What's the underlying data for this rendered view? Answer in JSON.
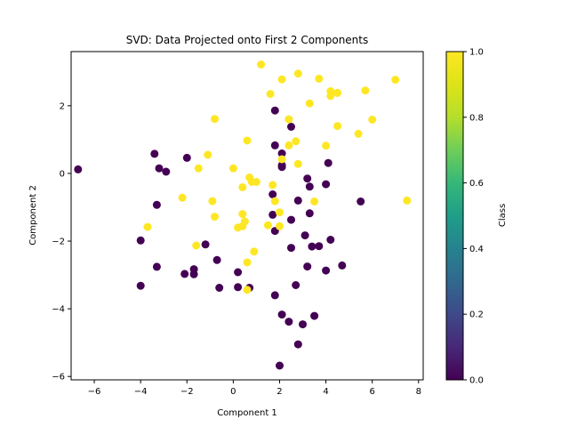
{
  "chart_data": {
    "type": "scatter",
    "title": "SVD: Data Projected onto First 2 Components",
    "xlabel": "Component 1",
    "ylabel": "Component 2",
    "xlim": [
      -7.0,
      8.2
    ],
    "ylim": [
      -6.1,
      3.6
    ],
    "xticks": [
      -6,
      -4,
      -2,
      0,
      2,
      4,
      6,
      8
    ],
    "yticks": [
      -6,
      -4,
      -2,
      0,
      2
    ],
    "grid": false,
    "colormap": "viridis",
    "colorbar": {
      "label": "Class",
      "range": [
        0.0,
        1.0
      ],
      "ticks": [
        0.0,
        0.2,
        0.4,
        0.6,
        0.8,
        1.0
      ],
      "tick_labels": [
        "0.0",
        "0.2",
        "0.4",
        "0.6",
        "0.8",
        "1.0"
      ]
    },
    "series": [
      {
        "class": 0,
        "color": "#440154",
        "points": [
          [
            -6.7,
            0.12
          ],
          [
            -3.4,
            0.58
          ],
          [
            -3.2,
            0.15
          ],
          [
            -2.9,
            0.05
          ],
          [
            -2.0,
            0.46
          ],
          [
            -3.3,
            -0.93
          ],
          [
            -4.0,
            -1.98
          ],
          [
            -3.3,
            -2.76
          ],
          [
            -4.0,
            -3.32
          ],
          [
            -2.1,
            -2.97
          ],
          [
            -1.7,
            -2.83
          ],
          [
            -1.7,
            -2.98
          ],
          [
            -1.2,
            -2.1
          ],
          [
            -0.7,
            -2.56
          ],
          [
            -0.6,
            -3.38
          ],
          [
            0.2,
            -2.92
          ],
          [
            0.2,
            -3.36
          ],
          [
            0.7,
            -3.38
          ],
          [
            1.7,
            -0.62
          ],
          [
            1.7,
            -1.22
          ],
          [
            1.8,
            -1.7
          ],
          [
            1.8,
            0.83
          ],
          [
            1.8,
            1.86
          ],
          [
            2.1,
            0.59
          ],
          [
            2.1,
            0.24
          ],
          [
            2.1,
            0.19
          ],
          [
            2.5,
            1.38
          ],
          [
            2.5,
            -1.37
          ],
          [
            2.5,
            -2.2
          ],
          [
            2.8,
            -0.8
          ],
          [
            3.1,
            -1.83
          ],
          [
            3.2,
            -0.15
          ],
          [
            3.3,
            -0.39
          ],
          [
            3.3,
            -1.18
          ],
          [
            3.4,
            -2.16
          ],
          [
            3.7,
            -2.15
          ],
          [
            3.2,
            -2.75
          ],
          [
            4.0,
            -0.32
          ],
          [
            4.1,
            0.31
          ],
          [
            4.2,
            -1.96
          ],
          [
            4.0,
            -2.87
          ],
          [
            4.7,
            -2.72
          ],
          [
            5.5,
            -0.83
          ],
          [
            1.8,
            -3.6
          ],
          [
            2.7,
            -3.3
          ],
          [
            2.1,
            -4.17
          ],
          [
            2.4,
            -4.38
          ],
          [
            3.0,
            -4.46
          ],
          [
            3.5,
            -4.21
          ],
          [
            2.8,
            -5.05
          ],
          [
            2.0,
            -5.68
          ]
        ]
      },
      {
        "class": 1,
        "color": "#fde725",
        "points": [
          [
            -3.7,
            -1.58
          ],
          [
            -2.2,
            -0.72
          ],
          [
            -1.6,
            -2.13
          ],
          [
            -1.5,
            0.15
          ],
          [
            -1.1,
            0.55
          ],
          [
            -0.9,
            -0.82
          ],
          [
            -0.8,
            -1.28
          ],
          [
            -0.8,
            1.61
          ],
          [
            0.0,
            0.15
          ],
          [
            0.2,
            -1.6
          ],
          [
            0.4,
            -1.2
          ],
          [
            0.4,
            -1.56
          ],
          [
            0.5,
            -1.42
          ],
          [
            0.4,
            -0.41
          ],
          [
            0.6,
            0.97
          ],
          [
            0.7,
            -0.12
          ],
          [
            0.8,
            -0.25
          ],
          [
            0.9,
            -2.31
          ],
          [
            1.0,
            -0.25
          ],
          [
            0.6,
            -2.63
          ],
          [
            0.6,
            -3.44
          ],
          [
            1.2,
            3.22
          ],
          [
            1.5,
            -1.53
          ],
          [
            1.6,
            2.35
          ],
          [
            1.7,
            -0.34
          ],
          [
            1.8,
            -0.82
          ],
          [
            2.0,
            -1.56
          ],
          [
            2.0,
            -1.15
          ],
          [
            2.1,
            0.42
          ],
          [
            2.1,
            2.78
          ],
          [
            2.4,
            1.6
          ],
          [
            2.4,
            0.83
          ],
          [
            2.7,
            0.95
          ],
          [
            2.8,
            0.28
          ],
          [
            2.8,
            2.95
          ],
          [
            3.3,
            2.07
          ],
          [
            3.5,
            -0.83
          ],
          [
            3.7,
            2.8
          ],
          [
            4.0,
            0.82
          ],
          [
            4.2,
            2.43
          ],
          [
            4.2,
            2.29
          ],
          [
            4.5,
            2.38
          ],
          [
            4.5,
            1.4
          ],
          [
            5.4,
            1.17
          ],
          [
            5.7,
            2.45
          ],
          [
            6.0,
            1.59
          ],
          [
            7.0,
            2.77
          ],
          [
            7.5,
            -0.8
          ]
        ]
      }
    ]
  }
}
